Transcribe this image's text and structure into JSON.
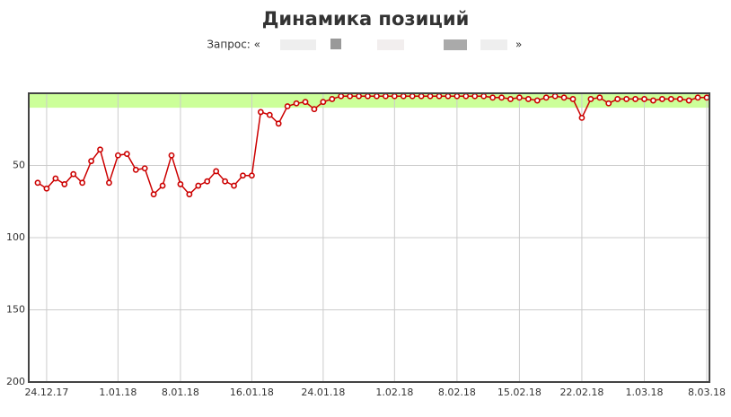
{
  "chart_data": {
    "type": "line",
    "title": "Динамика позиций",
    "subtitle": "Запрос: «",
    "subtitle_end": "»",
    "categories": [
      null,
      "24.12.17",
      null,
      null,
      null,
      null,
      null,
      null,
      null,
      "1.01.18",
      null,
      null,
      null,
      null,
      null,
      null,
      "8.01.18",
      null,
      null,
      null,
      null,
      null,
      null,
      null,
      "16.01.18",
      null,
      null,
      null,
      null,
      null,
      null,
      null,
      "24.01.18",
      null,
      null,
      null,
      null,
      null,
      null,
      null,
      "1.02.18",
      null,
      null,
      null,
      null,
      null,
      null,
      "8.02.18",
      null,
      null,
      null,
      null,
      null,
      null,
      "15.02.18",
      null,
      null,
      null,
      null,
      null,
      null,
      "22.02.18",
      null,
      null,
      null,
      null,
      null,
      null,
      "1.03.18",
      null,
      null,
      null,
      null,
      null,
      null,
      "8.03.18"
    ],
    "series": [
      {
        "color": "#cc0000",
        "values": [
          62,
          66,
          59,
          63,
          56,
          62,
          47,
          39,
          62,
          43,
          42,
          53,
          52,
          70,
          64,
          43,
          63,
          70,
          64,
          61,
          54,
          61,
          64,
          57,
          57,
          13,
          15,
          21,
          9,
          7,
          6,
          11,
          6,
          4,
          2,
          2,
          2,
          2,
          2,
          2,
          2,
          2,
          2,
          2,
          2,
          2,
          2,
          2,
          2,
          2,
          2,
          3,
          3,
          4,
          3,
          4,
          5,
          3,
          2,
          3,
          4,
          17,
          4,
          3,
          7,
          4,
          4,
          4,
          4,
          5,
          4,
          4,
          4,
          5,
          3,
          3
        ]
      }
    ],
    "ylim": [
      0,
      200
    ],
    "y_reversed": true,
    "yticks": [
      50,
      100,
      150,
      200
    ],
    "grid": true,
    "highlight_band": {
      "from": 0,
      "to": 10,
      "color": "#ccff99"
    }
  }
}
